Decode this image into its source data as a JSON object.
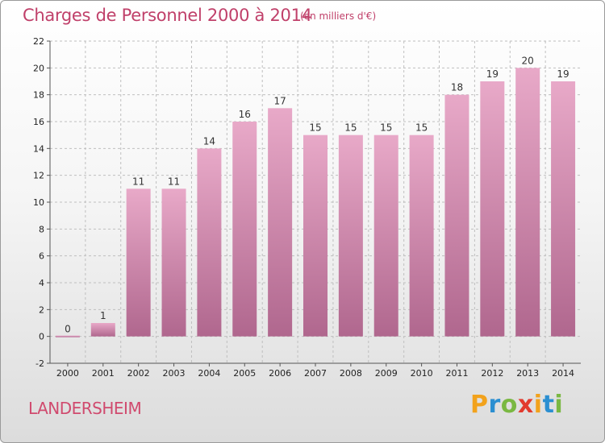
{
  "header": {
    "title": "Charges de Personnel 2000 à 2014",
    "subtitle": "(en milliers d'€)"
  },
  "footer": {
    "commune": "LANDERSHEIM",
    "logo_letters": [
      {
        "char": "P",
        "color": "#f2a21c"
      },
      {
        "char": "r",
        "color": "#2b8fd1"
      },
      {
        "char": "o",
        "color": "#7ab842"
      },
      {
        "char": "x",
        "color": "#e23a2e"
      },
      {
        "char": "i",
        "color": "#f2a21c"
      },
      {
        "char": "t",
        "color": "#2b8fd1"
      },
      {
        "char": "i",
        "color": "#7ab842"
      }
    ]
  },
  "colors": {
    "bar": "#c77aa3",
    "bar_light": "#e8a9c8",
    "bar_dark": "#b0678e",
    "grid": "#bfbfbf"
  },
  "chart_data": {
    "type": "bar",
    "title": "Charges de Personnel 2000 à 2014",
    "subtitle": "(en milliers d'€)",
    "xlabel": "",
    "ylabel": "",
    "categories": [
      "2000",
      "2001",
      "2002",
      "2003",
      "2004",
      "2005",
      "2006",
      "2007",
      "2008",
      "2009",
      "2010",
      "2011",
      "2012",
      "2013",
      "2014"
    ],
    "values": [
      0,
      1,
      11,
      11,
      14,
      16,
      17,
      15,
      15,
      15,
      15,
      18,
      19,
      20,
      19
    ],
    "ylim": [
      -2,
      22
    ],
    "yticks": [
      -2,
      0,
      2,
      4,
      6,
      8,
      10,
      12,
      14,
      16,
      18,
      20,
      22
    ],
    "grid": "horizontal-dashed",
    "legend": "none"
  }
}
